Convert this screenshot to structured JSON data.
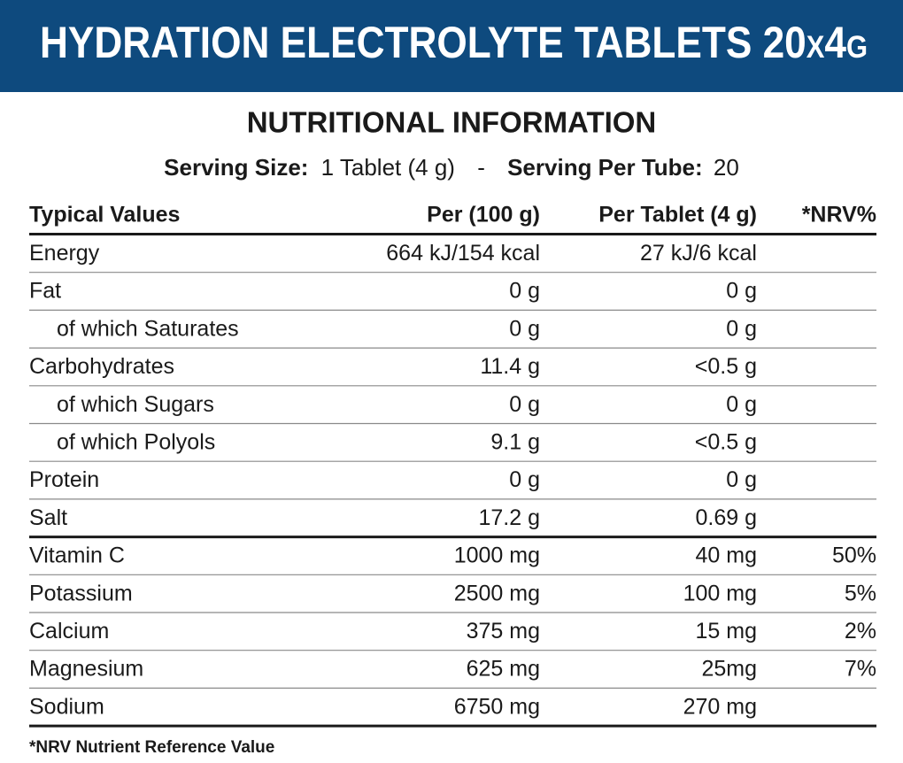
{
  "header": {
    "title": "HYDRATION ELECTROLYTE TABLETS 20x4g"
  },
  "heading": "NUTRITIONAL INFORMATION",
  "serving": {
    "size_label": "Serving Size:",
    "size_value": "1 Tablet (4 g)",
    "separator": "-",
    "per_tube_label": "Serving Per Tube:",
    "per_tube_value": "20"
  },
  "table": {
    "columns": [
      "Typical Values",
      "Per (100 g)",
      "Per Tablet (4 g)",
      "*NRV%"
    ],
    "rows": [
      [
        "Energy",
        "664 kJ/154 kcal",
        "27 kJ/6 kcal"
      ],
      [
        "Fat",
        "0 g",
        "0 g"
      ],
      [
        "of which Saturates",
        "0 g",
        "0 g"
      ],
      [
        "Carbohydrates",
        "11.4 g",
        "<0.5 g"
      ],
      [
        "of which Sugars",
        "0 g",
        "0 g"
      ],
      [
        "of which Polyols",
        "9.1 g",
        "<0.5 g"
      ],
      [
        "Protein",
        "0 g",
        "0 g"
      ],
      [
        "Salt",
        "17.2 g",
        "0.69 g"
      ],
      [
        "Vitamin C",
        "1000 mg",
        "40 mg",
        "50%"
      ],
      [
        "Potassium",
        "2500 mg",
        "100 mg",
        "5%"
      ],
      [
        "Calcium",
        "375 mg",
        "15 mg",
        "2%"
      ],
      [
        "Magnesium",
        "625 mg",
        "25mg",
        "7%"
      ],
      [
        "Sodium",
        "6750 mg",
        "270 mg"
      ]
    ]
  },
  "footnote": "*NRV Nutrient Reference Value"
}
